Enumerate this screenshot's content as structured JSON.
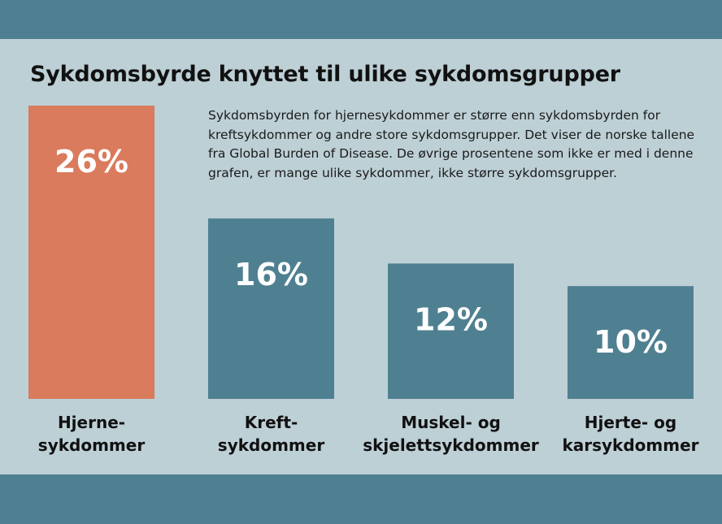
{
  "chart_data": {
    "type": "bar",
    "title": "Sykdomsbyrde knyttet til ulike sykdomsgrupper",
    "description": "Sykdomsbyrden for hjernesykdommer er større enn sykdomsbyrden for kreftsykdommer og andre store sykdomsgrupper. Det viser de norske tallene fra Global Burden of Disease. De øvrige prosentene som ikke er med i denne grafen, er mange ulike sykdommer, ikke større sykdomsgrupper.",
    "categories": [
      [
        "Hjerne-",
        "sykdommer"
      ],
      [
        "Kreft-",
        "sykdommer"
      ],
      [
        "Muskel- og",
        "skjelettsykdommer"
      ],
      [
        "Hjerte- og",
        "karsykdommer"
      ]
    ],
    "values": [
      26,
      16,
      12,
      10
    ],
    "value_labels": [
      "26%",
      "16%",
      "12%",
      "10%"
    ],
    "unit": "%",
    "colors": [
      "#d97b5c",
      "#4f8091",
      "#4f8091",
      "#4f8091"
    ],
    "ylim": [
      0,
      26
    ],
    "grid": false,
    "legend": "none"
  }
}
